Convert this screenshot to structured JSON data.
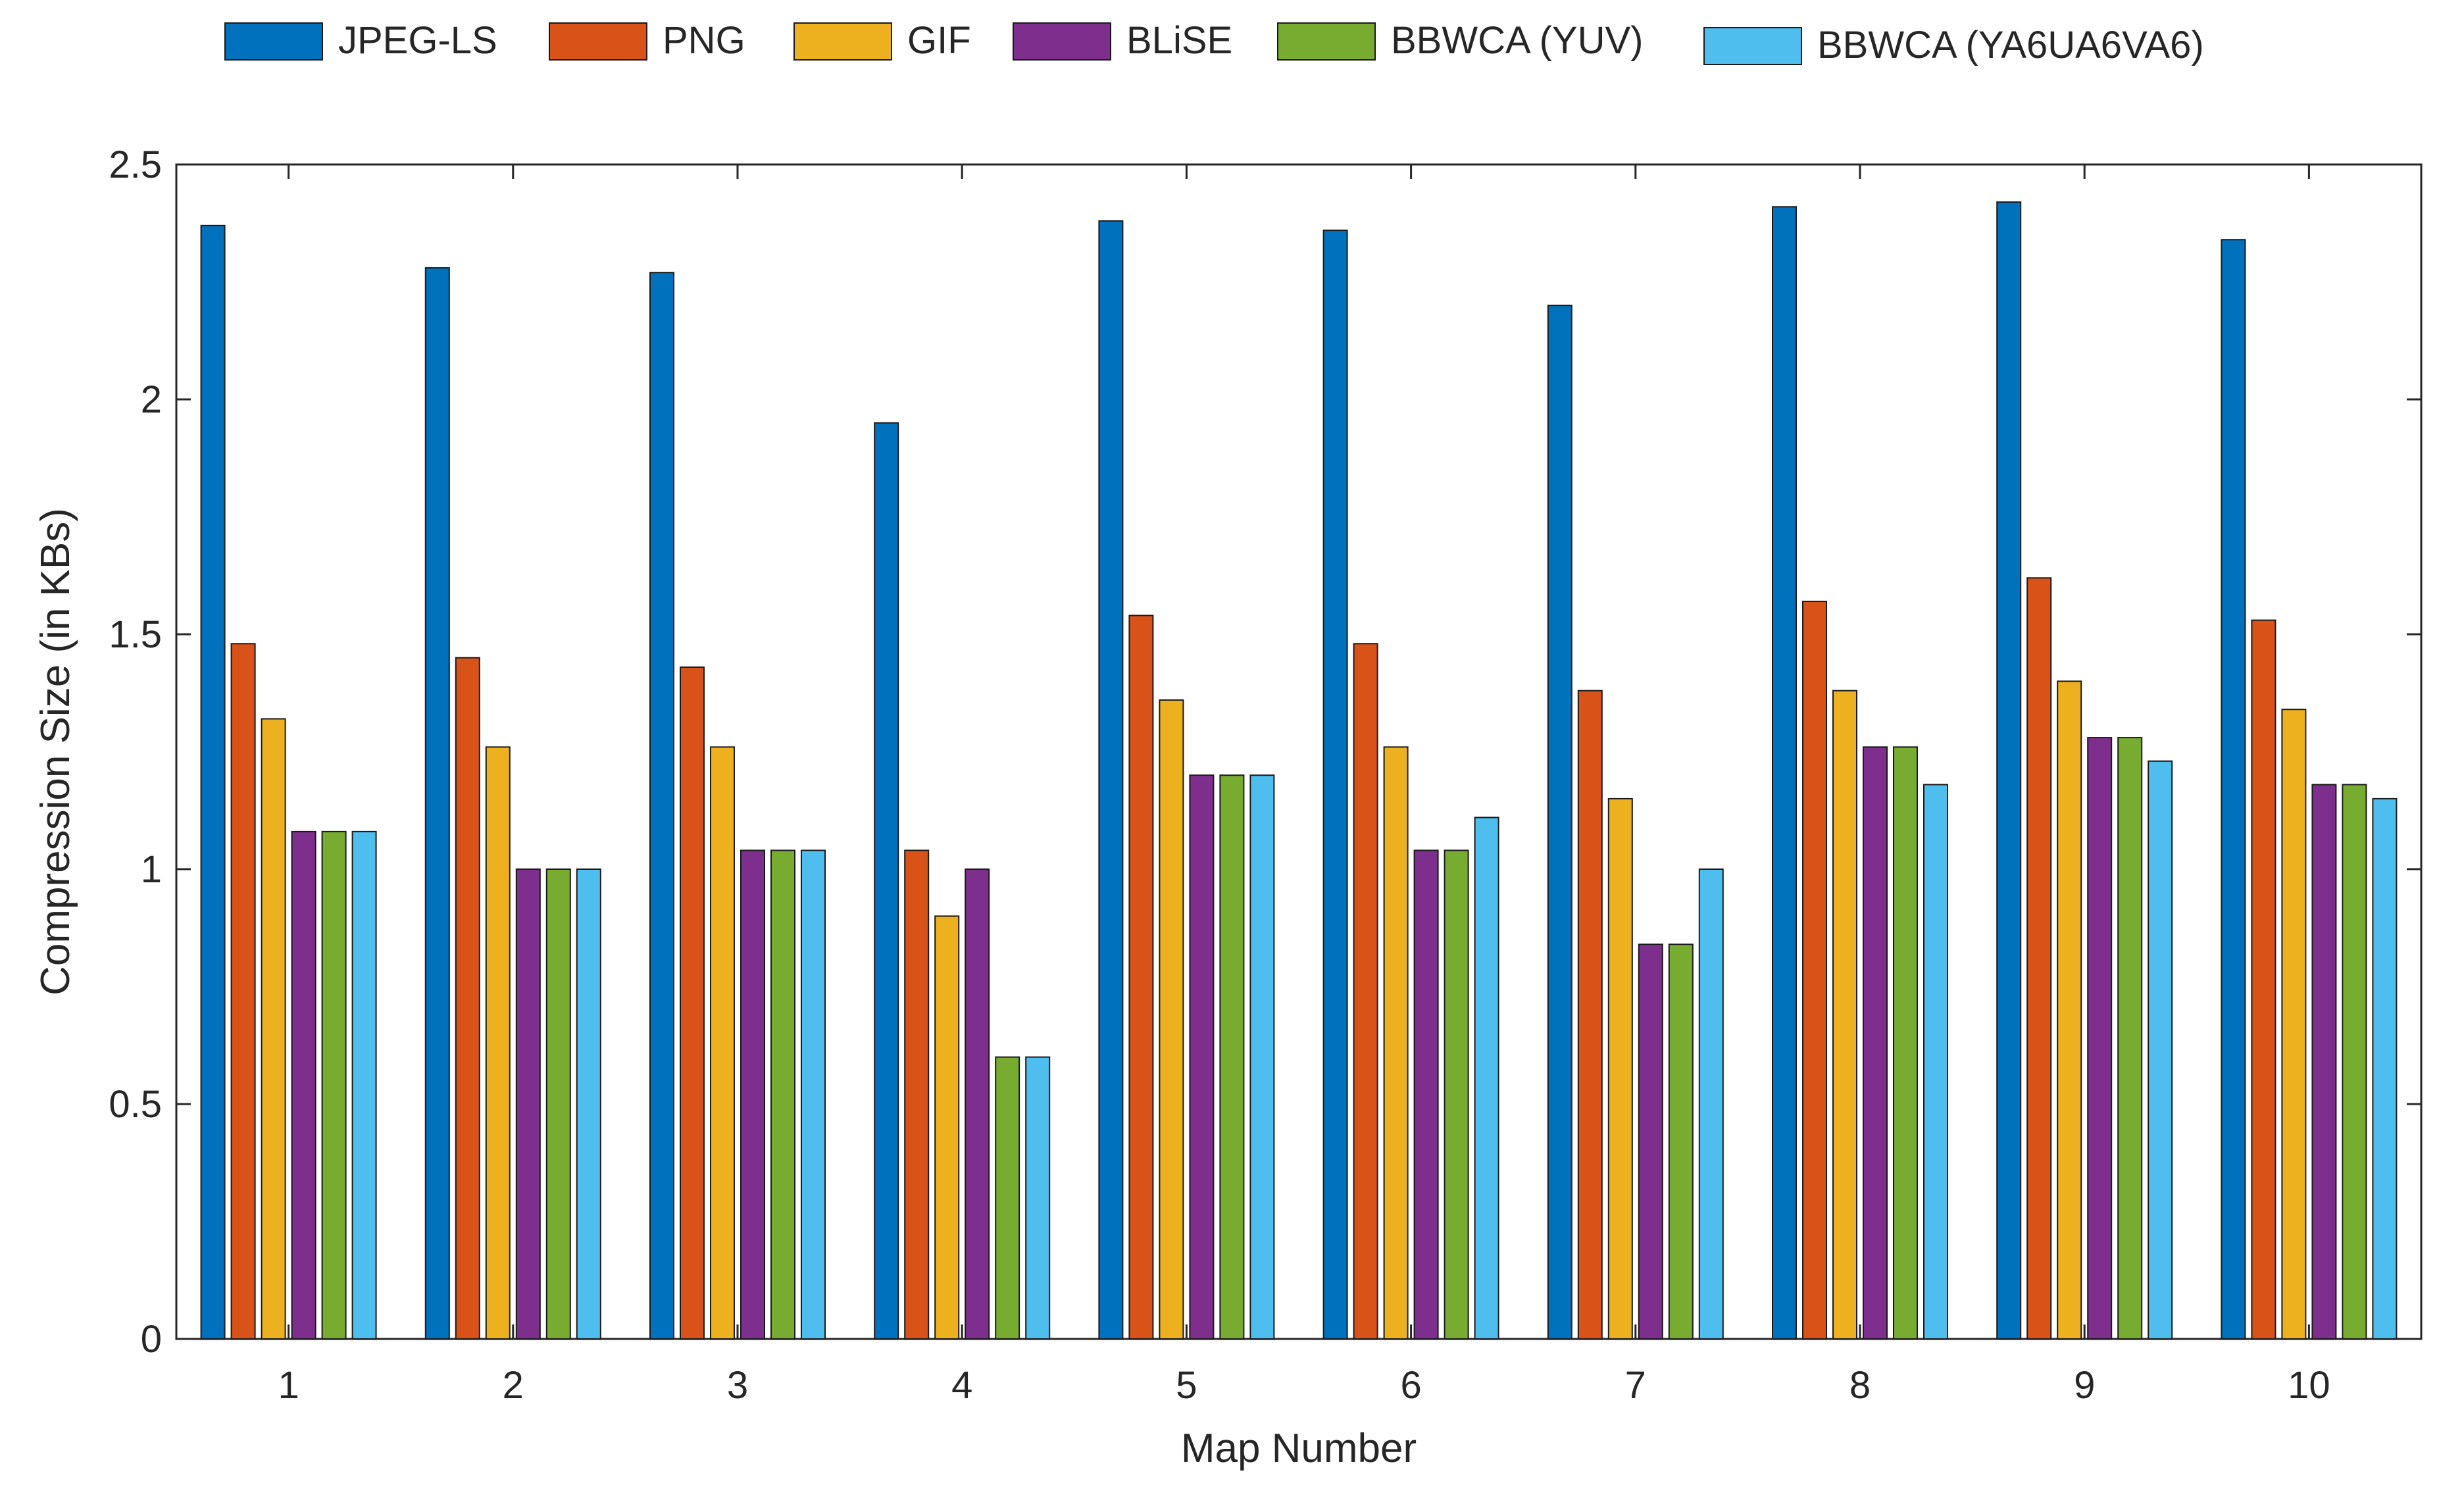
{
  "chart_data": {
    "type": "bar",
    "title": "",
    "xlabel": "Map Number",
    "ylabel": "Compression Size (in KBs)",
    "ylim": [
      0,
      2.5
    ],
    "yticks": [
      0,
      0.5,
      1,
      1.5,
      2,
      2.5
    ],
    "ytick_labels": [
      "0",
      "0.5",
      "1",
      "1.5",
      "2",
      "2.5"
    ],
    "categories": [
      "1",
      "2",
      "3",
      "4",
      "5",
      "6",
      "7",
      "8",
      "9",
      "10"
    ],
    "legend_position": "top",
    "grid": false,
    "series": [
      {
        "name": "JPEG-LS",
        "color": "#0072BD",
        "values": [
          2.37,
          2.28,
          2.27,
          1.95,
          2.38,
          2.36,
          2.2,
          2.41,
          2.42,
          2.34
        ]
      },
      {
        "name": "PNG",
        "color": "#D95319",
        "values": [
          1.48,
          1.45,
          1.43,
          1.04,
          1.54,
          1.48,
          1.38,
          1.57,
          1.62,
          1.53
        ]
      },
      {
        "name": "GIF",
        "color": "#EDB120",
        "values": [
          1.32,
          1.26,
          1.26,
          0.9,
          1.36,
          1.26,
          1.15,
          1.38,
          1.4,
          1.34
        ]
      },
      {
        "name": "BLiSE",
        "color": "#7E2F8E",
        "values": [
          1.08,
          1.0,
          1.04,
          1.0,
          1.2,
          1.04,
          0.84,
          1.26,
          1.28,
          1.18
        ]
      },
      {
        "name": "BBWCA (YUV)",
        "color": "#77AC30",
        "values": [
          1.08,
          1.0,
          1.04,
          0.6,
          1.2,
          1.04,
          0.84,
          1.26,
          1.28,
          1.18
        ]
      },
      {
        "name": "BBWCA (YA6UA6VA6)",
        "color": "#4DBEEE",
        "values": [
          1.08,
          1.0,
          1.04,
          0.6,
          1.2,
          1.11,
          1.0,
          1.18,
          1.23,
          1.15
        ]
      }
    ]
  }
}
